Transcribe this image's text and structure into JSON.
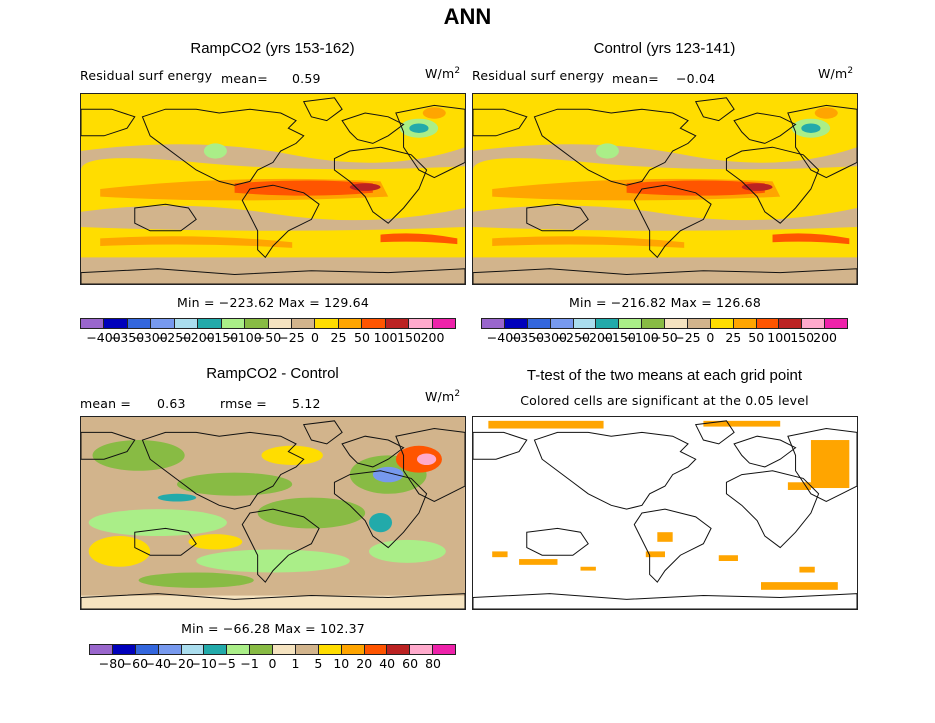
{
  "figure_title": "ANN",
  "units_label": "W/m",
  "units_exp": "2",
  "colors": {
    "land_outline": "#111111",
    "significant": "#ffa500"
  },
  "panels": [
    {
      "id": "rampco2",
      "title": "RampCO2 (yrs 153-162)",
      "variable": "Residual surf energy",
      "mean_label": "mean=",
      "mean_value": "0.59",
      "minmax": "Min = −223.62  Max = 129.64"
    },
    {
      "id": "control",
      "title": "Control (yrs 123-141)",
      "variable": "Residual surf energy",
      "mean_label": "mean=",
      "mean_value": "−0.04",
      "minmax": "Min = −216.82  Max = 126.68"
    },
    {
      "id": "diff",
      "title": "RampCO2 - Control",
      "mean_label": "mean =",
      "mean_value": "0.63",
      "rmse_label": "rmse =",
      "rmse_value": "5.12",
      "minmax": "Min = −66.28  Max = 102.37"
    },
    {
      "id": "ttest",
      "title": "T-test of the two means at each grid point",
      "subtitle": "Colored cells are significant at the 0.05 level"
    }
  ],
  "colorbar_colors": [
    "#9966cc",
    "#0000bb",
    "#3366dd",
    "#7799ee",
    "#aaddee",
    "#22aaaa",
    "#aaee88",
    "#88bb44",
    "#f5e3c0",
    "#d2b48c",
    "#ffdd00",
    "#ffa500",
    "#ff5500",
    "#bb2222",
    "#ffaacc",
    "#ee22aa"
  ],
  "colorbar_main_ticks": [
    "−400",
    "−350",
    "−300",
    "−250",
    "−200",
    "−150",
    "−100",
    "−50",
    "−25",
    "0",
    "25",
    "50",
    "100",
    "150",
    "200"
  ],
  "colorbar_diff_ticks": [
    "−80",
    "−60",
    "−40",
    "−20",
    "−10",
    "−5",
    "−1",
    "0",
    "1",
    "5",
    "10",
    "20",
    "40",
    "60",
    "80"
  ]
}
